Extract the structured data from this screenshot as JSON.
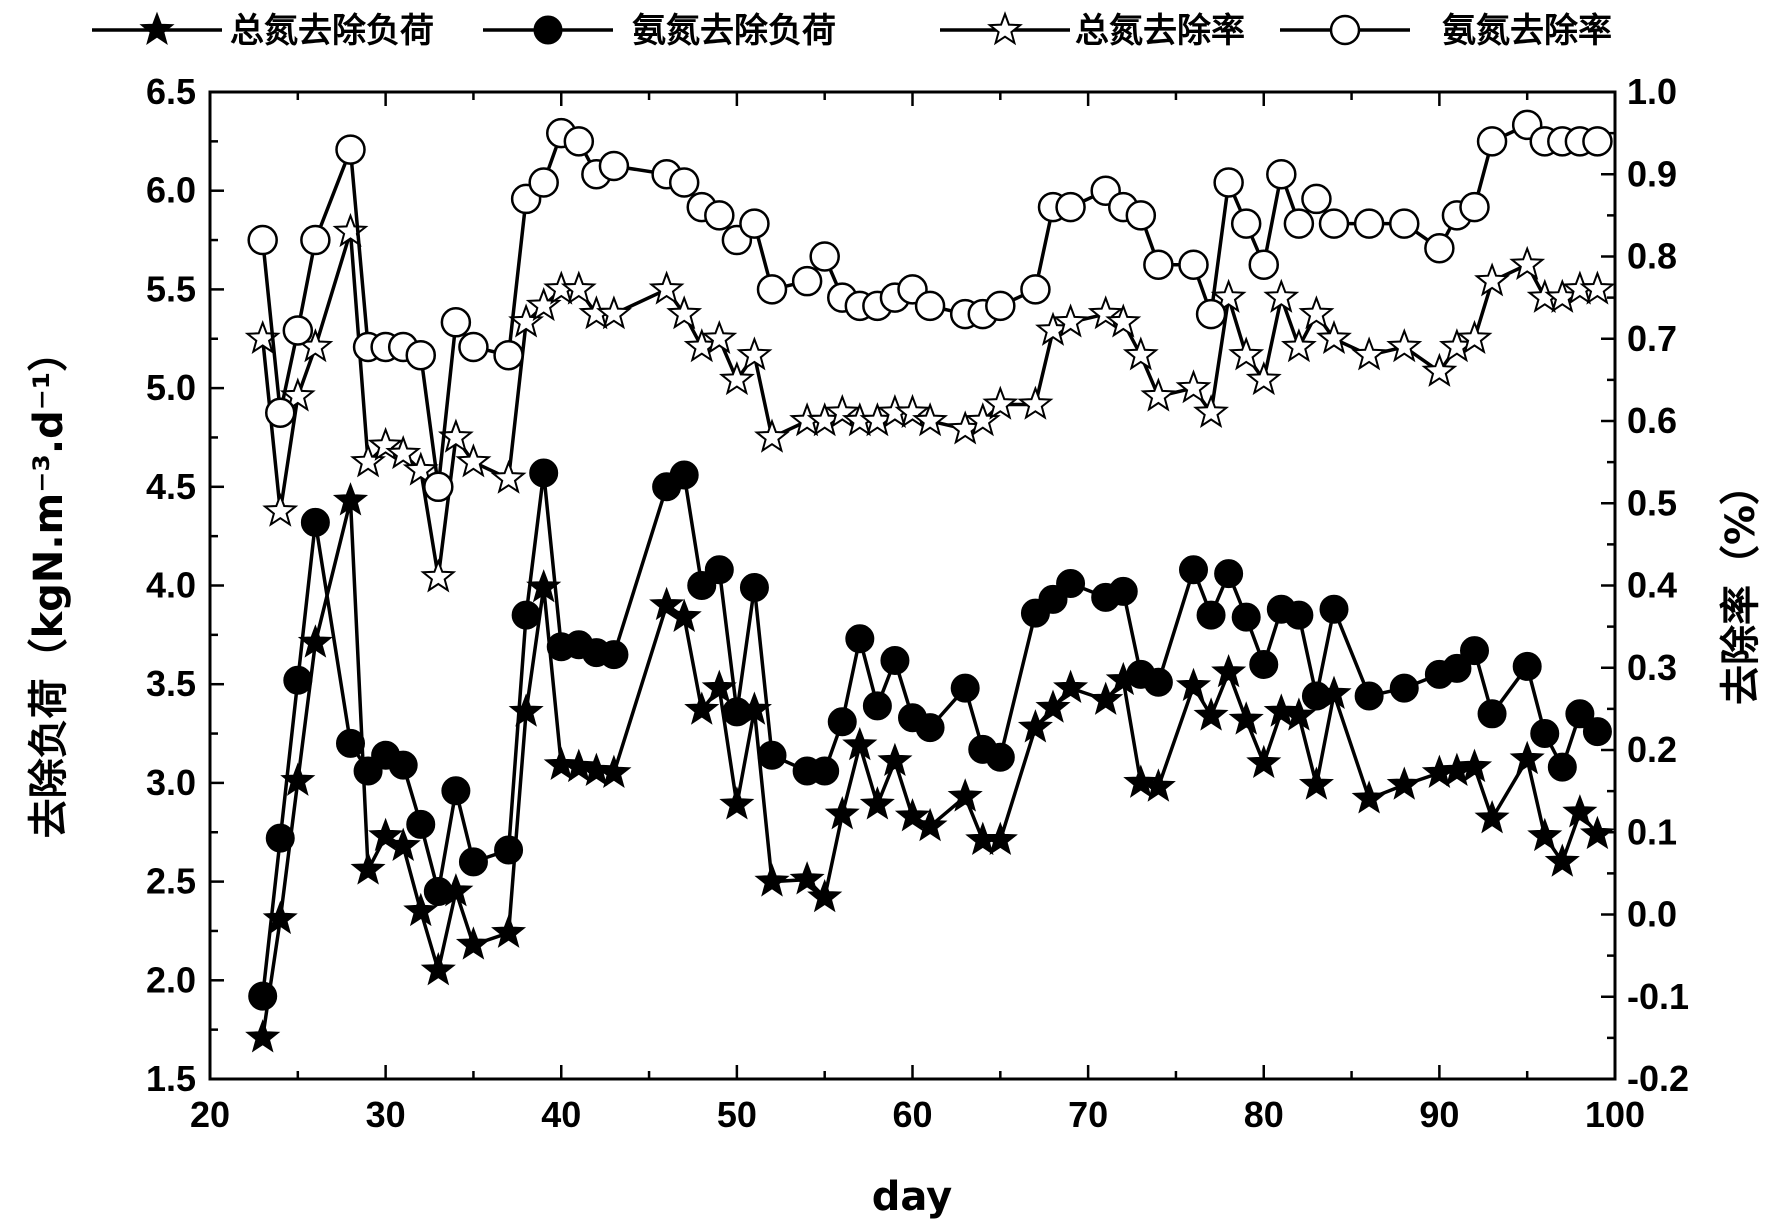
{
  "chart_data": {
    "type": "line",
    "x_label": "day",
    "y_left_label": "去除负荷（kgN.m⁻³.d⁻¹）",
    "y_right_label": "去除率（%）",
    "x_range": [
      20,
      100
    ],
    "y_left_range": [
      1.5,
      6.5
    ],
    "y_right_range": [
      -0.2,
      1.0
    ],
    "x_ticks": [
      "20",
      "30",
      "40",
      "50",
      "60",
      "70",
      "80",
      "90",
      "100"
    ],
    "y_left_ticks": [
      "1.5",
      "2.0",
      "2.5",
      "3.0",
      "3.5",
      "4.0",
      "4.5",
      "5.0",
      "5.5",
      "6.0",
      "6.5"
    ],
    "y_right_ticks": [
      "-0.2",
      "-0.1",
      "0.0",
      "0.1",
      "0.2",
      "0.3",
      "0.4",
      "0.5",
      "0.6",
      "0.7",
      "0.8",
      "0.9",
      "1.0"
    ],
    "legend_position": "top",
    "series": [
      {
        "name": "总氮去除负荷",
        "axis": "left",
        "marker": "filled-star",
        "x": [
          23,
          24,
          25,
          26,
          28,
          29,
          30,
          31,
          32,
          33,
          34,
          35,
          37,
          38,
          39,
          40,
          41,
          42,
          43,
          46,
          47,
          48,
          49,
          50,
          51,
          52,
          54,
          55,
          56,
          57,
          58,
          59,
          60,
          61,
          63,
          64,
          65,
          67,
          68,
          69,
          71,
          72,
          73,
          74,
          76,
          77,
          78,
          79,
          80,
          81,
          82,
          83,
          84,
          86,
          88,
          90,
          91,
          92,
          93,
          95,
          96,
          97,
          98,
          99
        ],
        "y": [
          1.71,
          2.31,
          3.01,
          3.71,
          4.43,
          2.56,
          2.73,
          2.68,
          2.35,
          2.05,
          2.45,
          2.18,
          2.24,
          3.36,
          3.99,
          3.09,
          3.08,
          3.06,
          3.05,
          3.9,
          3.84,
          3.37,
          3.48,
          2.89,
          3.37,
          2.5,
          2.51,
          2.42,
          2.84,
          3.19,
          2.89,
          3.11,
          2.83,
          2.78,
          2.93,
          2.71,
          2.71,
          3.28,
          3.38,
          3.48,
          3.42,
          3.52,
          3.0,
          2.98,
          3.49,
          3.34,
          3.56,
          3.32,
          3.1,
          3.36,
          3.34,
          2.99,
          3.45,
          2.92,
          2.99,
          3.05,
          3.06,
          3.08,
          2.82,
          3.12,
          2.73,
          2.6,
          2.85,
          2.74
        ]
      },
      {
        "name": "氨氮去除负荷",
        "axis": "left",
        "marker": "filled-circle",
        "x": [
          23,
          24,
          25,
          26,
          28,
          29,
          30,
          31,
          32,
          33,
          34,
          35,
          37,
          38,
          39,
          40,
          41,
          42,
          43,
          46,
          47,
          48,
          49,
          50,
          51,
          52,
          54,
          55,
          56,
          57,
          58,
          59,
          60,
          61,
          63,
          64,
          65,
          67,
          68,
          69,
          71,
          72,
          73,
          74,
          76,
          77,
          78,
          79,
          80,
          81,
          82,
          83,
          84,
          86,
          88,
          90,
          91,
          92,
          93,
          95,
          96,
          97,
          98,
          99
        ],
        "y": [
          1.92,
          2.72,
          3.52,
          4.32,
          3.2,
          3.06,
          3.14,
          3.09,
          2.79,
          2.45,
          2.96,
          2.6,
          2.66,
          3.85,
          4.57,
          3.69,
          3.7,
          3.66,
          3.65,
          4.5,
          4.56,
          4.0,
          4.08,
          3.36,
          3.99,
          3.14,
          3.06,
          3.06,
          3.31,
          3.73,
          3.39,
          3.62,
          3.33,
          3.28,
          3.48,
          3.17,
          3.13,
          3.86,
          3.93,
          4.01,
          3.94,
          3.97,
          3.55,
          3.51,
          4.08,
          3.85,
          4.06,
          3.84,
          3.6,
          3.88,
          3.85,
          3.44,
          3.88,
          3.44,
          3.48,
          3.55,
          3.58,
          3.67,
          3.35,
          3.59,
          3.25,
          3.08,
          3.35,
          3.26
        ]
      },
      {
        "name": "总氮去除率",
        "axis": "right",
        "marker": "open-star",
        "x": [
          23,
          24,
          25,
          26,
          28,
          29,
          30,
          31,
          32,
          33,
          34,
          35,
          37,
          38,
          39,
          40,
          41,
          42,
          43,
          46,
          47,
          48,
          49,
          50,
          51,
          52,
          54,
          55,
          56,
          57,
          58,
          59,
          60,
          61,
          63,
          64,
          65,
          67,
          68,
          69,
          71,
          72,
          73,
          74,
          76,
          77,
          78,
          79,
          80,
          81,
          82,
          83,
          84,
          86,
          88,
          90,
          91,
          92,
          93,
          95,
          96,
          97,
          98,
          99
        ],
        "y": [
          0.7,
          0.49,
          0.63,
          0.69,
          0.83,
          0.55,
          0.57,
          0.56,
          0.54,
          0.41,
          0.58,
          0.55,
          0.53,
          0.72,
          0.74,
          0.76,
          0.76,
          0.73,
          0.73,
          0.76,
          0.73,
          0.69,
          0.7,
          0.65,
          0.68,
          0.58,
          0.6,
          0.6,
          0.61,
          0.6,
          0.6,
          0.61,
          0.61,
          0.6,
          0.59,
          0.6,
          0.62,
          0.62,
          0.71,
          0.72,
          0.73,
          0.72,
          0.68,
          0.63,
          0.64,
          0.61,
          0.75,
          0.68,
          0.65,
          0.75,
          0.69,
          0.73,
          0.7,
          0.68,
          0.69,
          0.66,
          0.69,
          0.7,
          0.77,
          0.79,
          0.75,
          0.75,
          0.76,
          0.76
        ]
      },
      {
        "name": "氨氮去除率",
        "axis": "right",
        "marker": "open-circle",
        "x": [
          23,
          24,
          25,
          26,
          28,
          29,
          30,
          31,
          32,
          33,
          34,
          35,
          37,
          38,
          39,
          40,
          41,
          42,
          43,
          46,
          47,
          48,
          49,
          50,
          51,
          52,
          54,
          55,
          56,
          57,
          58,
          59,
          60,
          61,
          63,
          64,
          65,
          67,
          68,
          69,
          71,
          72,
          73,
          74,
          76,
          77,
          78,
          79,
          80,
          81,
          82,
          83,
          84,
          86,
          88,
          90,
          91,
          92,
          93,
          95,
          96,
          97,
          98,
          99
        ],
        "y": [
          0.82,
          0.61,
          0.71,
          0.82,
          0.93,
          0.69,
          0.69,
          0.69,
          0.68,
          0.52,
          0.72,
          0.69,
          0.68,
          0.87,
          0.89,
          0.95,
          0.94,
          0.9,
          0.91,
          0.9,
          0.89,
          0.86,
          0.85,
          0.82,
          0.84,
          0.76,
          0.77,
          0.8,
          0.75,
          0.74,
          0.74,
          0.75,
          0.76,
          0.74,
          0.73,
          0.73,
          0.74,
          0.76,
          0.86,
          0.86,
          0.88,
          0.86,
          0.85,
          0.79,
          0.79,
          0.73,
          0.89,
          0.84,
          0.79,
          0.9,
          0.84,
          0.87,
          0.84,
          0.84,
          0.84,
          0.81,
          0.85,
          0.86,
          0.94,
          0.96,
          0.94,
          0.94,
          0.94,
          0.94
        ]
      }
    ]
  }
}
